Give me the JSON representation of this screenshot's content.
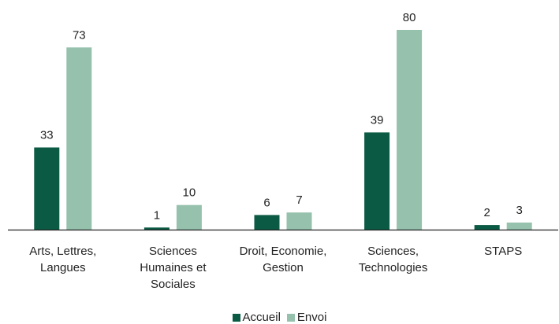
{
  "chart_data": {
    "type": "bar",
    "categories": [
      [
        "Arts, Lettres,",
        "Langues"
      ],
      [
        "Sciences",
        "Humaines et",
        "Sociales"
      ],
      [
        "Droit, Economie,",
        "Gestion"
      ],
      [
        "Sciences,",
        "Technologies"
      ],
      [
        "STAPS"
      ]
    ],
    "series": [
      {
        "name": "Accueil",
        "values": [
          33,
          1,
          6,
          39,
          2
        ],
        "color": "#0b5a43"
      },
      {
        "name": "Envoi",
        "values": [
          73,
          10,
          7,
          80,
          3
        ],
        "color": "#96c1ad"
      }
    ],
    "ylim": [
      0,
      80
    ],
    "grid": false,
    "legend_position": "bottom"
  }
}
